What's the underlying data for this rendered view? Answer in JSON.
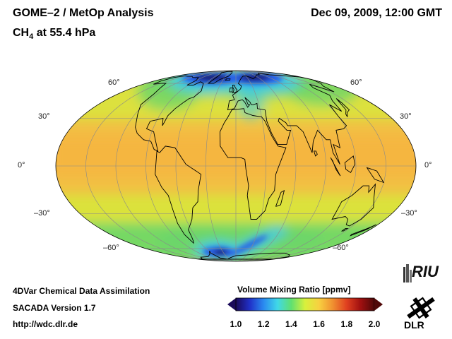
{
  "header": {
    "title": "GOME–2 / MetOp Analysis",
    "species_prefix": "CH",
    "species_subscript": "4",
    "species_suffix": "at 55.4 hPa",
    "datetime": "Dec 09, 2009, 12:00 GMT"
  },
  "map": {
    "projection": "Mollweide",
    "latitude_labels_left": [
      "60°",
      "30°",
      "0°",
      "–30°",
      "–60°"
    ],
    "latitude_labels_right": [
      "60°",
      "30°",
      "0°",
      "–30°",
      "–60°"
    ],
    "colors": {
      "background": "#f2c044",
      "tropics_band": "#f6b23e",
      "midlat": "#d8e63c",
      "highlat_green": "#6cd66a",
      "low_cyan": "#38c8f0",
      "low_blue": "#2858e8",
      "low_dark": "#1a1060",
      "coastline": "#000000",
      "graticule": "#8a8a8a"
    }
  },
  "footer": {
    "line1": "4DVar Chemical Data Assimilation",
    "line2": "SACADA Version 1.7",
    "url": "http://wdc.dlr.de"
  },
  "colorbar": {
    "title": "Volume Mixing Ratio [ppmv]",
    "min": 1.0,
    "max": 2.0,
    "tick_labels": [
      "1.0",
      "1.2",
      "1.4",
      "1.6",
      "1.8",
      "2.0"
    ],
    "stops": [
      "#1a0a5a",
      "#2030c8",
      "#2a8af0",
      "#40d8e8",
      "#60e070",
      "#d8f03c",
      "#f8d040",
      "#f09030",
      "#e04020",
      "#a01010",
      "#500808"
    ]
  },
  "logos": {
    "riu": "RIU",
    "dlr": "DLR"
  }
}
